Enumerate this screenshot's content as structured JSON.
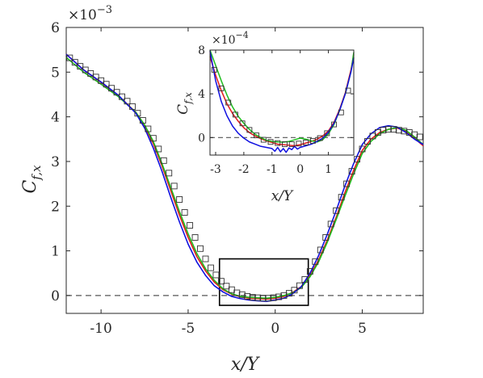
{
  "chart_data": {
    "type": "line",
    "main": {
      "xlabel": "x/Y",
      "ylabel": "C",
      "ylabel_sub": "f,x",
      "y_exponent_base": "×10",
      "y_exponent_power": "−3",
      "xlim": [
        -12,
        8.5
      ],
      "ylim": [
        -0.4,
        6
      ],
      "xticks": [
        -10,
        -5,
        0,
        5
      ],
      "xtick_labels": [
        "-10",
        "-5",
        "0",
        "5"
      ],
      "yticks": [
        0,
        1,
        2,
        3,
        4,
        5,
        6
      ],
      "ytick_labels": [
        "0",
        "1",
        "2",
        "3",
        "4",
        "5",
        "6"
      ],
      "zoom_box": {
        "x": [
          -3.2,
          1.9
        ],
        "y": [
          -0.22,
          0.82
        ]
      },
      "reference_line_y": 0,
      "colors": {
        "red": "#e31a1c",
        "green": "#1fbd1f",
        "blue": "#1010e0",
        "markers": "#333333",
        "dashed": "#555555"
      },
      "series": [
        {
          "color": "#e31a1c",
          "x": [
            -12,
            -11,
            -10,
            -9,
            -8,
            -7.5,
            -7,
            -6.5,
            -6,
            -5.5,
            -5,
            -4.5,
            -4,
            -3.5,
            -3,
            -2.5,
            -2,
            -1.5,
            -1,
            -0.5,
            0,
            0.5,
            1,
            1.5,
            2,
            2.5,
            3,
            3.5,
            4,
            4.5,
            5,
            5.5,
            6,
            6.5,
            7,
            7.5,
            8,
            8.5
          ],
          "y": [
            5.4,
            5.05,
            4.77,
            4.47,
            4.1,
            3.8,
            3.4,
            2.9,
            2.35,
            1.8,
            1.3,
            0.87,
            0.55,
            0.3,
            0.13,
            0.03,
            -0.03,
            -0.06,
            -0.07,
            -0.08,
            -0.06,
            -0.02,
            0.07,
            0.2,
            0.45,
            0.8,
            1.25,
            1.75,
            2.3,
            2.8,
            3.25,
            3.5,
            3.65,
            3.72,
            3.75,
            3.68,
            3.52,
            3.35
          ]
        },
        {
          "color": "#1fbd1f",
          "x": [
            -12,
            -11,
            -10,
            -9,
            -8,
            -7.5,
            -7,
            -6.5,
            -6,
            -5.5,
            -5,
            -4.5,
            -4,
            -3.5,
            -3,
            -2.5,
            -2,
            -1.5,
            -1,
            -0.5,
            0,
            0.5,
            1,
            1.5,
            2,
            2.5,
            3,
            3.5,
            4,
            4.5,
            5,
            5.5,
            6,
            6.5,
            7,
            7.5,
            8,
            8.5
          ],
          "y": [
            5.33,
            5.0,
            4.73,
            4.45,
            4.1,
            3.82,
            3.45,
            2.95,
            2.42,
            1.88,
            1.38,
            0.94,
            0.6,
            0.34,
            0.15,
            0.04,
            -0.02,
            -0.04,
            -0.05,
            -0.06,
            -0.04,
            0.0,
            0.06,
            0.18,
            0.42,
            0.76,
            1.2,
            1.7,
            2.22,
            2.72,
            3.18,
            3.45,
            3.62,
            3.72,
            3.76,
            3.7,
            3.55,
            3.38
          ]
        },
        {
          "color": "#1010e0",
          "x": [
            -12,
            -11,
            -10,
            -9,
            -8,
            -7.5,
            -7,
            -6.5,
            -6,
            -5.5,
            -5,
            -4.5,
            -4,
            -3.5,
            -3,
            -2.5,
            -2,
            -1.5,
            -1,
            -0.5,
            0,
            0.5,
            1,
            1.5,
            2,
            2.5,
            3,
            3.5,
            4,
            4.5,
            5,
            5.5,
            6,
            6.5,
            7,
            7.5,
            8,
            8.5
          ],
          "y": [
            5.4,
            5.05,
            4.78,
            4.48,
            4.08,
            3.75,
            3.3,
            2.78,
            2.2,
            1.65,
            1.15,
            0.75,
            0.45,
            0.22,
            0.08,
            -0.02,
            -0.07,
            -0.1,
            -0.12,
            -0.13,
            -0.1,
            -0.06,
            0.04,
            0.2,
            0.5,
            0.9,
            1.38,
            1.9,
            2.45,
            2.95,
            3.38,
            3.62,
            3.76,
            3.8,
            3.77,
            3.65,
            3.5,
            3.38
          ]
        },
        {
          "color": "#333333",
          "marker": "square",
          "x": [
            -11.8,
            -11.5,
            -11.2,
            -10.9,
            -10.6,
            -10.3,
            -10.0,
            -9.7,
            -9.4,
            -9.1,
            -8.8,
            -8.5,
            -8.2,
            -7.9,
            -7.6,
            -7.3,
            -7.0,
            -6.7,
            -6.4,
            -6.1,
            -5.8,
            -5.5,
            -5.2,
            -4.9,
            -4.6,
            -4.3,
            -4.0,
            -3.7,
            -3.4,
            -3.1,
            -2.8,
            -2.5,
            -2.2,
            -1.9,
            -1.6,
            -1.3,
            -1.0,
            -0.7,
            -0.4,
            -0.1,
            0.2,
            0.5,
            0.8,
            1.1,
            1.4,
            1.7,
            2.0,
            2.3,
            2.6,
            2.9,
            3.2,
            3.5,
            3.8,
            4.1,
            4.4,
            4.7,
            5.0,
            5.3,
            5.6,
            5.9,
            6.2,
            6.5,
            6.8,
            7.1,
            7.4,
            7.7,
            8.0,
            8.3
          ],
          "y": [
            5.32,
            5.22,
            5.13,
            5.05,
            4.97,
            4.89,
            4.81,
            4.73,
            4.64,
            4.55,
            4.45,
            4.35,
            4.23,
            4.08,
            3.92,
            3.73,
            3.52,
            3.28,
            3.02,
            2.74,
            2.45,
            2.15,
            1.86,
            1.57,
            1.3,
            1.05,
            0.82,
            0.62,
            0.46,
            0.32,
            0.21,
            0.13,
            0.06,
            0.02,
            -0.02,
            -0.04,
            -0.05,
            -0.06,
            -0.06,
            -0.05,
            -0.03,
            0.0,
            0.05,
            0.12,
            0.22,
            0.36,
            0.54,
            0.76,
            1.02,
            1.3,
            1.6,
            1.9,
            2.2,
            2.5,
            2.78,
            3.05,
            3.28,
            3.45,
            3.57,
            3.65,
            3.7,
            3.72,
            3.72,
            3.7,
            3.68,
            3.65,
            3.6,
            3.55
          ]
        }
      ]
    },
    "inset": {
      "xlabel": "x/Y",
      "ylabel": "C",
      "ylabel_sub": "f,x",
      "y_exponent_base": "×10",
      "y_exponent_power": "−4",
      "xlim": [
        -3.2,
        1.9
      ],
      "ylim": [
        -1.6,
        8
      ],
      "xticks": [
        -3,
        -2,
        -1,
        0,
        1
      ],
      "xtick_labels": [
        "-3",
        "-2",
        "-1",
        "0",
        "1"
      ],
      "yticks": [
        0,
        4,
        8
      ],
      "ytick_labels": [
        "0",
        "4",
        "8"
      ],
      "reference_line_y": 0,
      "series": [
        {
          "color": "#e31a1c",
          "x": [
            -3.2,
            -3.0,
            -2.8,
            -2.6,
            -2.4,
            -2.2,
            -2.0,
            -1.8,
            -1.6,
            -1.4,
            -1.2,
            -1.0,
            -0.8,
            -0.6,
            -0.4,
            -0.2,
            0.0,
            0.2,
            0.4,
            0.6,
            0.8,
            1.0,
            1.2,
            1.4,
            1.6,
            1.8,
            1.9
          ],
          "y": [
            7.4,
            5.7,
            4.3,
            3.1,
            2.2,
            1.5,
            0.9,
            0.45,
            0.15,
            -0.1,
            -0.3,
            -0.45,
            -0.6,
            -0.65,
            -0.7,
            -0.75,
            -0.65,
            -0.5,
            -0.35,
            -0.15,
            0.15,
            0.6,
            1.4,
            2.6,
            4.1,
            6.2,
            7.6
          ]
        },
        {
          "color": "#1fbd1f",
          "x": [
            -3.2,
            -3.0,
            -2.8,
            -2.6,
            -2.4,
            -2.2,
            -2.0,
            -1.8,
            -1.6,
            -1.4,
            -1.2,
            -1.0,
            -0.8,
            -0.6,
            -0.4,
            -0.2,
            0.0,
            0.2,
            0.4,
            0.6,
            0.8,
            1.0,
            1.2,
            1.4,
            1.6,
            1.8,
            1.9
          ],
          "y": [
            8.0,
            6.6,
            5.2,
            3.9,
            2.8,
            1.95,
            1.3,
            0.75,
            0.3,
            0.0,
            -0.25,
            -0.35,
            -0.4,
            -0.42,
            -0.35,
            -0.2,
            -0.05,
            -0.15,
            -0.3,
            -0.4,
            -0.2,
            0.35,
            1.2,
            2.5,
            4.0,
            6.0,
            7.8
          ]
        },
        {
          "color": "#1010e0",
          "x": [
            -3.2,
            -3.0,
            -2.8,
            -2.6,
            -2.4,
            -2.2,
            -2.0,
            -1.8,
            -1.6,
            -1.4,
            -1.2,
            -1.0,
            -0.9,
            -0.8,
            -0.7,
            -0.6,
            -0.5,
            -0.4,
            -0.3,
            -0.2,
            -0.1,
            0.0,
            0.2,
            0.4,
            0.6,
            0.8,
            1.0,
            1.2,
            1.4,
            1.6,
            1.8,
            1.9
          ],
          "y": [
            7.9,
            5.2,
            3.3,
            2.0,
            1.05,
            0.4,
            -0.05,
            -0.4,
            -0.6,
            -0.8,
            -0.9,
            -1.0,
            -1.25,
            -0.9,
            -1.3,
            -1.0,
            -1.35,
            -0.95,
            -1.1,
            -0.8,
            -1.05,
            -0.9,
            -0.75,
            -0.6,
            -0.35,
            -0.05,
            0.5,
            1.3,
            2.5,
            4.0,
            6.0,
            7.3
          ]
        },
        {
          "color": "#333333",
          "marker": "square",
          "x": [
            -3.05,
            -2.8,
            -2.55,
            -2.3,
            -2.05,
            -1.8,
            -1.55,
            -1.3,
            -1.05,
            -0.8,
            -0.55,
            -0.3,
            -0.05,
            0.2,
            0.45,
            0.7,
            0.95,
            1.2,
            1.45,
            1.7
          ],
          "y": [
            6.2,
            4.5,
            3.2,
            2.1,
            1.3,
            0.7,
            0.2,
            -0.2,
            -0.4,
            -0.5,
            -0.6,
            -0.6,
            -0.55,
            -0.45,
            -0.3,
            -0.05,
            0.4,
            1.2,
            2.3,
            4.3
          ]
        }
      ]
    }
  }
}
